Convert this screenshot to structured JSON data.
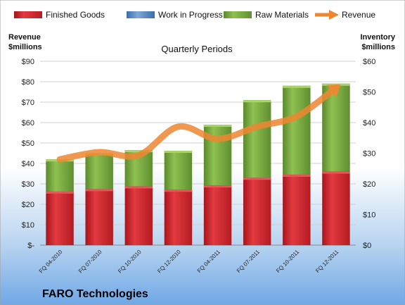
{
  "chart_data": {
    "type": "bar",
    "subtitle": "Quarterly Periods",
    "company": "FARO Technologies",
    "left_axis_label": [
      "Revenue",
      "$millions"
    ],
    "right_axis_label": [
      "Inventory",
      "$millions"
    ],
    "categories": [
      "FQ 04-2010",
      "FQ 07-2010",
      "FQ 10-2010",
      "FQ 12-2010",
      "FQ 04-2011",
      "FQ 07-2011",
      "FQ 10-2011",
      "FQ 12-2011"
    ],
    "left_ylim": [
      0,
      90
    ],
    "left_ticks": [
      "$-",
      "$10",
      "$20",
      "$30",
      "$40",
      "$50",
      "$60",
      "$70",
      "$80",
      "$90"
    ],
    "right_ylim": [
      0,
      60
    ],
    "right_ticks": [
      "$0",
      "$10",
      "$20",
      "$30",
      "$40",
      "$50",
      "$60"
    ],
    "stacked": true,
    "series": [
      {
        "name": "Finished Goods",
        "axis": "right",
        "color": "#d8262e",
        "values": [
          17.5,
          18.3,
          19.2,
          18.1,
          19.5,
          22.0,
          23.0,
          24.0
        ]
      },
      {
        "name": "Work in Progress",
        "axis": "right",
        "color": "#4f81bd",
        "values": [
          0.0,
          0.0,
          0.0,
          0.0,
          0.0,
          0.0,
          0.0,
          0.0
        ]
      },
      {
        "name": "Raw Materials",
        "axis": "right",
        "color": "#77a640",
        "values": [
          10.5,
          11.7,
          11.8,
          12.7,
          19.8,
          25.3,
          29.0,
          28.7
        ]
      }
    ],
    "line": {
      "name": "Revenue",
      "axis": "left",
      "color": "#ee8631",
      "values": [
        42.0,
        45.5,
        44.0,
        58.0,
        52.0,
        58.0,
        63.0,
        77.0
      ]
    },
    "grid": true,
    "legend_position": "top"
  }
}
